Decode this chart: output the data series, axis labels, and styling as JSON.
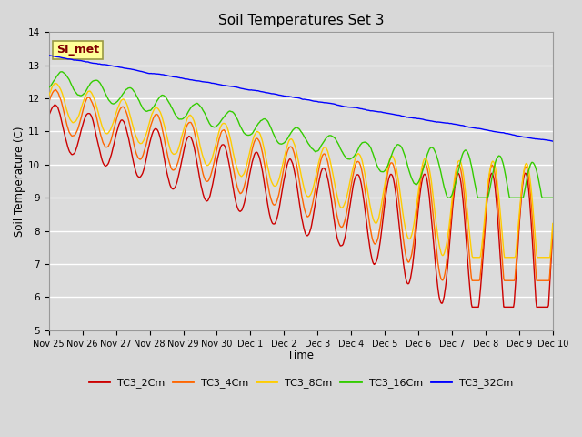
{
  "title": "Soil Temperatures Set 3",
  "xlabel": "Time",
  "ylabel": "Soil Temperature (C)",
  "ylim": [
    5.0,
    14.0
  ],
  "yticks": [
    5.0,
    6.0,
    7.0,
    8.0,
    9.0,
    10.0,
    11.0,
    12.0,
    13.0,
    14.0
  ],
  "xtick_labels": [
    "Nov 25",
    "Nov 26",
    "Nov 27",
    "Nov 28",
    "Nov 29",
    "Nov 30",
    "Dec 1",
    "Dec 2",
    "Dec 3",
    "Dec 4",
    "Dec 5",
    "Dec 6",
    "Dec 7",
    "Dec 8",
    "Dec 9",
    "Dec 10"
  ],
  "colors": {
    "TC3_2Cm": "#cc0000",
    "TC3_4Cm": "#ff6600",
    "TC3_8Cm": "#ffcc00",
    "TC3_16Cm": "#33cc00",
    "TC3_32Cm": "#0000ff"
  },
  "bg_color": "#e8e8e8",
  "annotation_text": "SI_met",
  "annotation_color": "#800000",
  "annotation_bg": "#ffff99",
  "annotation_border": "#999944",
  "n_days": 15,
  "pts_per_day": 48
}
